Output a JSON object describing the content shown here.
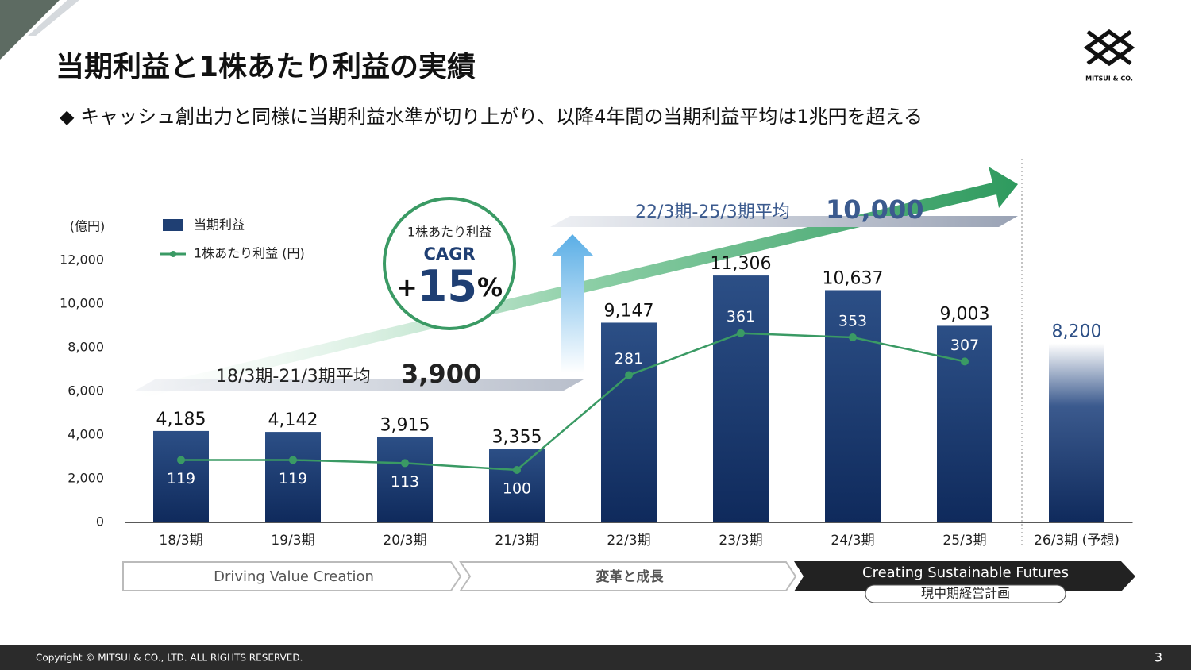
{
  "header": {
    "title": "当期利益と1株あたり利益の実績",
    "subtitle": "◆ キャッシュ創出力と同様に当期利益水準が切り上がり、以降4年間の当期利益平均は1兆円を超える",
    "logo": "MITSUI & CO."
  },
  "chart_data": {
    "type": "bar_line",
    "unit_label": "(億円)",
    "categories": [
      "18/3期",
      "19/3期",
      "20/3期",
      "21/3期",
      "22/3期",
      "23/3期",
      "24/3期",
      "25/3期",
      "26/3期 (予想)"
    ],
    "series": [
      {
        "name": "当期利益",
        "color": "#1f3f73",
        "values": [
          4185,
          4142,
          3915,
          3355,
          9147,
          11306,
          10637,
          9003,
          8200
        ],
        "value_labels": [
          "4,185",
          "4,142",
          "3,915",
          "3,355",
          "9,147",
          "11,306",
          "10,637",
          "9,003",
          "8,200"
        ]
      },
      {
        "name": "1株あたり利益 (円)",
        "color": "#3a9a64",
        "axis": "y2",
        "values": [
          119,
          119,
          113,
          100,
          281,
          361,
          353,
          307,
          null
        ]
      }
    ],
    "ylim": [
      0,
      12000
    ],
    "yticks": [
      0,
      {
        "value": 2000,
        "label": "2,000"
      },
      {
        "value": 4000,
        "label": "4,000"
      },
      {
        "value": 6000,
        "label": "6,000"
      },
      {
        "value": 8000,
        "label": "8,000"
      },
      {
        "value": 10000,
        "label": "10,000"
      },
      {
        "value": 12000,
        "label": "12,000"
      }
    ],
    "y2lim": [
      0,
      500
    ],
    "cagr": {
      "label": "1株あたり利益",
      "title": "CAGR",
      "sign": "+",
      "value": 15,
      "unit": "%"
    },
    "averages": [
      {
        "label": "18/3期-21/3期平均",
        "value": 3900,
        "value_label": "3,900"
      },
      {
        "label": "22/3期-25/3期平均",
        "value": 10000,
        "value_label": "10,000"
      }
    ],
    "phases": [
      "Driving Value Creation",
      "変革と成長",
      "Creating Sustainable Futures"
    ],
    "phase_note": "現中期経営計画"
  },
  "footer": {
    "copyright": "Copyright © MITSUI & CO., LTD. ALL RIGHTS RESERVED.",
    "page": "3"
  }
}
